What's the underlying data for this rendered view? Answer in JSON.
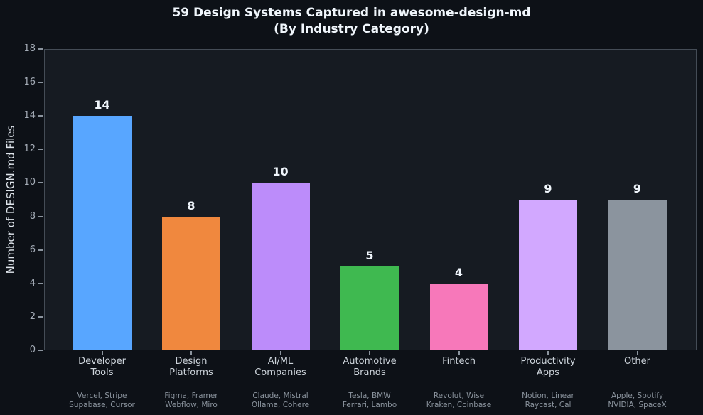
{
  "title": {
    "line1": "59 Design Systems Captured in awesome-design-md",
    "line2": "(By Industry Category)"
  },
  "chart_data": {
    "type": "bar",
    "title": "59 Design Systems Captured in awesome-design-md (By Industry Category)",
    "xlabel": "",
    "ylabel": "Number of DESIGN.md Files",
    "ylim": [
      0,
      18
    ],
    "yticks": [
      0,
      2,
      4,
      6,
      8,
      10,
      12,
      14,
      16,
      18
    ],
    "grid": false,
    "legend": "none",
    "categories": [
      [
        "Developer",
        "Tools"
      ],
      [
        "Design",
        "Platforms"
      ],
      [
        "AI/ML",
        "Companies"
      ],
      [
        "Automotive",
        "Brands"
      ],
      [
        "Fintech"
      ],
      [
        "Productivity",
        "Apps"
      ],
      [
        "Other"
      ]
    ],
    "values": [
      14,
      8,
      10,
      5,
      4,
      9,
      9
    ],
    "bar_colors": [
      "#58a6ff",
      "#f0883e",
      "#bc8cfa",
      "#3fb950",
      "#f778ba",
      "#d2a8ff",
      "#8b949e"
    ],
    "sublabels": [
      [
        "Vercel, Stripe",
        "Supabase, Cursor"
      ],
      [
        "Figma, Framer",
        "Webflow, Miro"
      ],
      [
        "Claude, Mistral",
        "Ollama, Cohere"
      ],
      [
        "Tesla, BMW",
        "Ferrari, Lambo"
      ],
      [
        "Revolut, Wise",
        "Kraken, Coinbase"
      ],
      [
        "Notion, Linear",
        "Raycast, Cal"
      ],
      [
        "Apple, Spotify",
        "NVIDIA, SpaceX"
      ]
    ]
  },
  "colors": {
    "page_background": "#0d1117",
    "plot_background": "#161b22",
    "spine": "#444c56",
    "title_text": "#f0f6fc",
    "tick_text": "#a5adb8",
    "category_text": "#cdd4db",
    "sublabel_text": "#8b949e"
  }
}
